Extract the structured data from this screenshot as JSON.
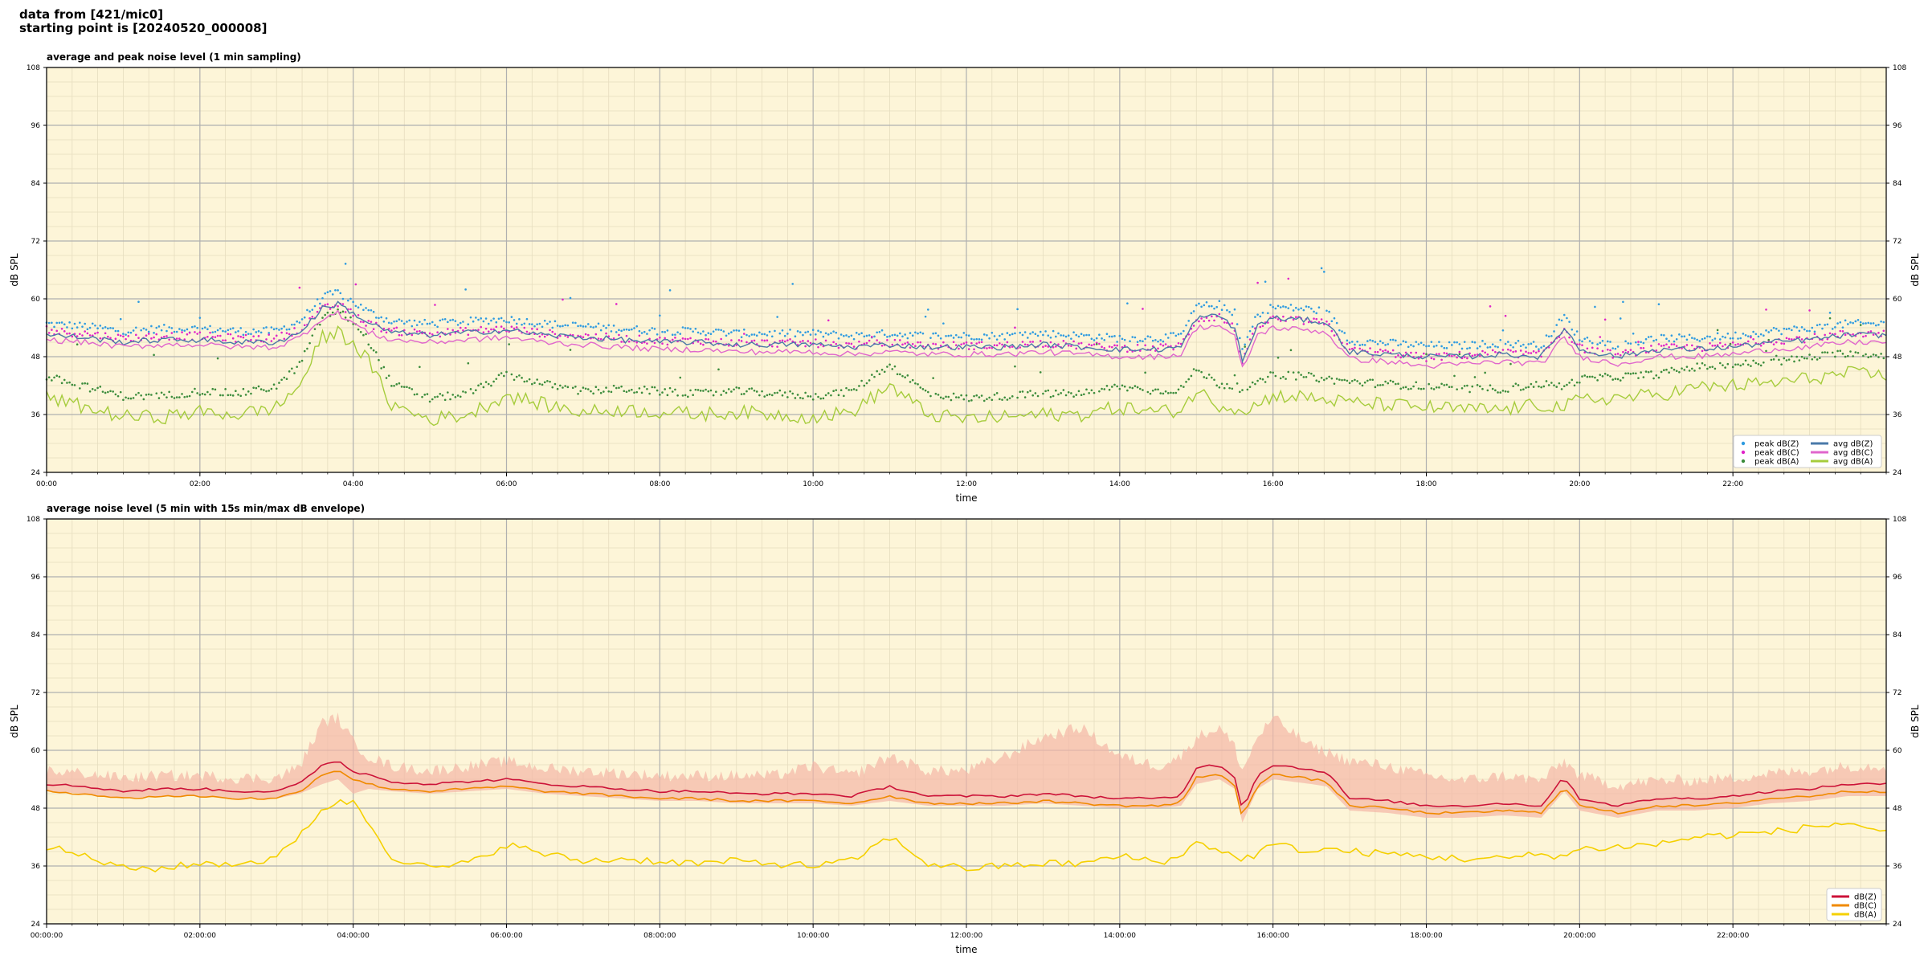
{
  "header": {
    "line1": "data from [421/mic0]",
    "line2": "starting point is [20240520_000008]"
  },
  "colors": {
    "panel_bg": "#fdf5d8",
    "grid_major": "#b0b0b0",
    "grid_minor": "#e6ddbf",
    "avg_z": "#4a79a8",
    "avg_c": "#e066cc",
    "avg_a": "#a6cc3c",
    "peak_z": "#2f9be0",
    "peak_c": "#e024c8",
    "peak_a": "#3c8c3c",
    "env_z": "#cc1238",
    "env_c": "#f08a00",
    "env_a": "#f5d000",
    "envelope_fill": "#f4b6a6"
  },
  "chart_data": [
    {
      "type": "line",
      "title": "average and peak noise level (1 min sampling)",
      "xlabel": "time",
      "ylabel": "dB SPL",
      "x_unit": "hours",
      "xlim": [
        0,
        24
      ],
      "ylim": [
        24,
        108
      ],
      "yticks": [
        24,
        36,
        48,
        60,
        72,
        84,
        96,
        108
      ],
      "xticks": [
        "00:00",
        "02:00",
        "04:00",
        "06:00",
        "08:00",
        "10:00",
        "12:00",
        "14:00",
        "16:00",
        "18:00",
        "20:00",
        "22:00"
      ],
      "grid": true,
      "legend_position": "bottom-right",
      "legend": [
        "peak dB(Z)",
        "peak dB(C)",
        "peak dB(A)",
        "avg dB(Z)",
        "avg dB(C)",
        "avg dB(A)"
      ],
      "x": [
        0,
        0.5,
        1,
        1.5,
        2,
        2.5,
        3,
        3.3,
        3.6,
        3.8,
        4.0,
        4.2,
        4.5,
        5,
        5.5,
        6,
        6.5,
        7,
        7.5,
        8,
        8.5,
        9,
        9.5,
        10,
        10.5,
        11,
        11.5,
        12,
        12.5,
        13,
        13.5,
        14,
        14.5,
        14.8,
        15,
        15.3,
        15.5,
        15.6,
        15.8,
        16.0,
        16.5,
        16.7,
        17,
        17.5,
        18,
        18.5,
        19,
        19.5,
        19.8,
        20,
        20.5,
        21,
        21.5,
        22,
        22.5,
        23,
        23.5,
        24
      ],
      "series": [
        {
          "name": "avg dB(Z)",
          "values": [
            52.5,
            52.0,
            51.0,
            51.5,
            51.5,
            51.0,
            51.0,
            53.0,
            58.0,
            59.0,
            57.0,
            55.0,
            53.0,
            52.5,
            53.0,
            53.5,
            52.5,
            52.0,
            51.5,
            51.0,
            51.0,
            50.5,
            50.5,
            50.5,
            50.0,
            50.5,
            50.0,
            50.0,
            50.0,
            50.5,
            50.0,
            49.5,
            49.5,
            50.0,
            56.0,
            56.5,
            54.0,
            47.0,
            54.5,
            56.0,
            55.5,
            55.0,
            49.0,
            48.5,
            48.0,
            48.0,
            48.5,
            48.0,
            54.0,
            49.5,
            48.0,
            49.5,
            49.5,
            50.0,
            51.0,
            51.5,
            52.5,
            52.5
          ]
        },
        {
          "name": "avg dB(C)",
          "values": [
            51.5,
            51.0,
            50.0,
            50.5,
            50.5,
            50.0,
            50.0,
            52.0,
            56.0,
            57.0,
            55.0,
            53.0,
            51.5,
            51.0,
            51.5,
            52.0,
            51.0,
            50.5,
            50.0,
            49.5,
            49.5,
            49.0,
            49.0,
            49.0,
            48.5,
            49.0,
            48.5,
            48.5,
            48.5,
            49.0,
            48.5,
            48.0,
            48.0,
            48.5,
            54.0,
            54.5,
            52.0,
            45.5,
            52.5,
            54.0,
            53.5,
            53.0,
            47.5,
            47.0,
            46.0,
            46.5,
            47.0,
            46.5,
            52.0,
            48.0,
            46.5,
            48.0,
            48.0,
            48.5,
            49.5,
            50.0,
            51.0,
            51.0
          ]
        },
        {
          "name": "avg dB(A)",
          "values": [
            39.5,
            37.5,
            35.5,
            35.5,
            36.5,
            36.0,
            37.5,
            42.0,
            52.0,
            53.0,
            51.0,
            47.0,
            38.0,
            35.0,
            36.0,
            40.0,
            38.0,
            36.5,
            37.0,
            36.5,
            36.0,
            36.5,
            36.0,
            35.5,
            36.5,
            42.0,
            36.0,
            35.0,
            35.5,
            36.0,
            36.0,
            37.5,
            36.5,
            37.0,
            41.0,
            38.0,
            37.5,
            37.0,
            38.0,
            40.0,
            39.5,
            39.0,
            38.5,
            38.0,
            37.5,
            37.0,
            37.0,
            38.0,
            37.5,
            39.0,
            39.5,
            40.0,
            41.5,
            42.0,
            42.5,
            43.5,
            44.5,
            44.0
          ]
        }
      ],
      "peak_series": [
        {
          "name": "peak dB(Z)",
          "offset_above_avg": 2.0
        },
        {
          "name": "peak dB(C)",
          "offset_above_avg": 1.5
        },
        {
          "name": "peak dB(A)",
          "offset_above_avg": 4.0
        }
      ]
    },
    {
      "type": "area",
      "title": "average noise level (5 min with 15s min/max dB envelope)",
      "xlabel": "time",
      "ylabel": "dB SPL",
      "x_unit": "hours",
      "xlim": [
        0,
        24
      ],
      "ylim": [
        24,
        108
      ],
      "yticks": [
        24,
        36,
        48,
        60,
        72,
        84,
        96,
        108
      ],
      "xticks": [
        "00:00:00",
        "02:00:00",
        "04:00:00",
        "06:00:00",
        "08:00:00",
        "10:00:00",
        "12:00:00",
        "14:00:00",
        "16:00:00",
        "18:00:00",
        "20:00:00",
        "22:00:00"
      ],
      "grid": true,
      "legend_position": "bottom-right",
      "legend": [
        "dB(Z)",
        "dB(C)",
        "dB(A)"
      ],
      "x": [
        0,
        0.5,
        1,
        1.5,
        2,
        2.5,
        3,
        3.3,
        3.6,
        3.8,
        4.0,
        4.2,
        4.5,
        5,
        5.5,
        6,
        6.5,
        7,
        7.5,
        8,
        8.5,
        9,
        9.5,
        10,
        10.5,
        11,
        11.5,
        12,
        12.5,
        13,
        13.5,
        14,
        14.5,
        14.8,
        15,
        15.3,
        15.5,
        15.6,
        15.8,
        16.0,
        16.5,
        16.7,
        17,
        17.5,
        18,
        18.5,
        19,
        19.5,
        19.8,
        20,
        20.5,
        21,
        21.5,
        22,
        22.5,
        23,
        23.5,
        24
      ],
      "series": [
        {
          "name": "dB(Z)",
          "values": [
            53.0,
            52.5,
            51.5,
            52.0,
            52.0,
            51.5,
            51.5,
            53.0,
            57.0,
            58.0,
            55.5,
            55.0,
            53.5,
            53.0,
            53.5,
            54.0,
            53.0,
            52.5,
            52.0,
            51.5,
            51.5,
            51.0,
            51.0,
            51.0,
            50.5,
            52.5,
            50.5,
            50.5,
            50.5,
            51.0,
            50.5,
            50.0,
            50.0,
            50.5,
            56.5,
            57.0,
            54.5,
            47.5,
            55.0,
            57.0,
            56.0,
            55.5,
            50.0,
            49.5,
            48.5,
            48.5,
            49.0,
            48.5,
            54.5,
            50.0,
            48.5,
            50.0,
            50.0,
            50.5,
            51.5,
            52.0,
            53.0,
            53.0
          ]
        },
        {
          "name": "dB(C)",
          "values": [
            51.5,
            51.0,
            50.0,
            50.5,
            50.5,
            50.0,
            50.0,
            51.5,
            55.0,
            56.0,
            54.0,
            53.0,
            52.0,
            51.5,
            52.0,
            52.5,
            51.5,
            51.0,
            50.5,
            50.0,
            50.0,
            49.5,
            49.5,
            49.5,
            49.0,
            50.5,
            49.0,
            49.0,
            49.0,
            49.5,
            49.0,
            48.5,
            48.5,
            49.0,
            54.5,
            55.0,
            52.5,
            46.0,
            53.0,
            55.0,
            54.0,
            53.5,
            48.5,
            48.0,
            47.0,
            47.0,
            47.5,
            47.0,
            52.5,
            48.5,
            47.0,
            48.5,
            48.5,
            49.0,
            50.0,
            50.5,
            51.5,
            51.5
          ]
        },
        {
          "name": "dB(A)",
          "values": [
            40.0,
            38.0,
            35.5,
            35.5,
            36.5,
            36.5,
            37.5,
            42.5,
            48.0,
            49.0,
            49.5,
            45.0,
            38.0,
            35.5,
            36.5,
            40.5,
            38.5,
            37.0,
            37.5,
            37.0,
            36.5,
            37.0,
            36.5,
            36.0,
            37.0,
            42.0,
            36.5,
            35.5,
            36.0,
            36.5,
            36.5,
            38.0,
            37.0,
            37.5,
            41.5,
            39.0,
            38.0,
            37.5,
            38.5,
            40.5,
            39.0,
            39.5,
            39.0,
            38.5,
            38.0,
            37.5,
            37.5,
            38.5,
            38.0,
            39.5,
            40.0,
            40.5,
            42.0,
            42.5,
            43.0,
            44.0,
            45.0,
            43.0
          ]
        }
      ],
      "envelope": {
        "name": "dB(Z) min/max",
        "max": [
          55.0,
          54.5,
          53.5,
          54.0,
          54.0,
          53.5,
          53.5,
          56.0,
          65.0,
          66.0,
          61.0,
          58.0,
          56.0,
          55.0,
          56.0,
          57.0,
          55.5,
          55.0,
          54.5,
          54.0,
          54.0,
          54.0,
          54.0,
          56.0,
          54.0,
          58.0,
          55.0,
          55.0,
          58.0,
          62.0,
          64.0,
          58.0,
          56.0,
          58.0,
          62.0,
          64.0,
          60.0,
          55.0,
          62.0,
          66.0,
          60.0,
          59.0,
          57.0,
          56.0,
          54.0,
          53.0,
          54.0,
          53.0,
          57.0,
          54.0,
          52.0,
          53.0,
          53.0,
          53.5,
          54.5,
          55.0,
          56.0,
          56.0
        ],
        "min": [
          51.5,
          51.0,
          50.0,
          50.5,
          50.5,
          50.0,
          50.0,
          51.0,
          53.0,
          54.0,
          51.0,
          52.0,
          51.5,
          51.0,
          51.5,
          52.0,
          51.0,
          50.5,
          50.0,
          49.5,
          49.5,
          49.0,
          49.0,
          49.0,
          48.5,
          49.5,
          48.5,
          48.5,
          48.5,
          49.0,
          48.5,
          48.0,
          48.0,
          48.5,
          53.0,
          54.0,
          52.0,
          45.0,
          52.0,
          54.0,
          53.0,
          52.5,
          47.5,
          47.0,
          46.0,
          46.0,
          46.5,
          46.0,
          51.5,
          47.5,
          46.0,
          47.5,
          47.5,
          48.0,
          49.0,
          49.5,
          50.5,
          50.5
        ]
      }
    }
  ]
}
